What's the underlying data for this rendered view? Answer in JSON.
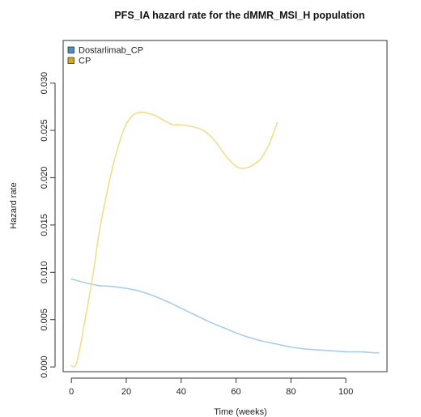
{
  "chart_data": {
    "type": "line",
    "title": "PFS_IA hazard rate for the dMMR_MSI_H population",
    "xlabel": "Time (weeks)",
    "ylabel": "Hazard rate",
    "xlim": [
      -3,
      115
    ],
    "ylim": [
      -0.0005,
      0.0345
    ],
    "xticks": [
      0,
      20,
      40,
      60,
      80,
      100
    ],
    "xtick_labels": [
      "0",
      "20",
      "40",
      "60",
      "80",
      "100"
    ],
    "yticks": [
      0.0,
      0.005,
      0.01,
      0.015,
      0.02,
      0.025,
      0.03
    ],
    "ytick_labels": [
      "0.000",
      "0.005",
      "0.010",
      "0.015",
      "0.020",
      "0.025",
      "0.030"
    ],
    "grid": false,
    "legend_position": "top-left",
    "series": [
      {
        "name": "Dostarlimab_CP",
        "color": "#a8cfe6",
        "legend_color": "#4f8fc0",
        "x": [
          0,
          5,
          10,
          15,
          20,
          25,
          30,
          35,
          40,
          45,
          50,
          55,
          60,
          65,
          70,
          75,
          80,
          85,
          90,
          95,
          100,
          105,
          110,
          112
        ],
        "y": [
          0.0093,
          0.0089,
          0.0086,
          0.0085,
          0.0083,
          0.008,
          0.0075,
          0.0069,
          0.0062,
          0.0055,
          0.0048,
          0.0042,
          0.0036,
          0.0031,
          0.0027,
          0.0024,
          0.0021,
          0.0019,
          0.0018,
          0.0017,
          0.0016,
          0.0016,
          0.0015,
          0.0015
        ]
      },
      {
        "name": "CP",
        "color": "#f3dc8c",
        "legend_color": "#d4aa1c",
        "x": [
          0,
          2,
          5,
          8,
          10,
          13,
          16,
          19,
          22,
          25,
          28,
          31,
          34,
          37,
          40,
          44,
          48,
          52,
          56,
          60,
          63,
          66,
          69,
          72,
          74,
          75
        ],
        "y": [
          0.0001,
          0.0005,
          0.005,
          0.01,
          0.014,
          0.0185,
          0.0222,
          0.025,
          0.0265,
          0.0269,
          0.0268,
          0.0265,
          0.026,
          0.0256,
          0.0256,
          0.0254,
          0.025,
          0.024,
          0.0224,
          0.0212,
          0.021,
          0.0213,
          0.022,
          0.0235,
          0.025,
          0.0258
        ]
      }
    ]
  }
}
